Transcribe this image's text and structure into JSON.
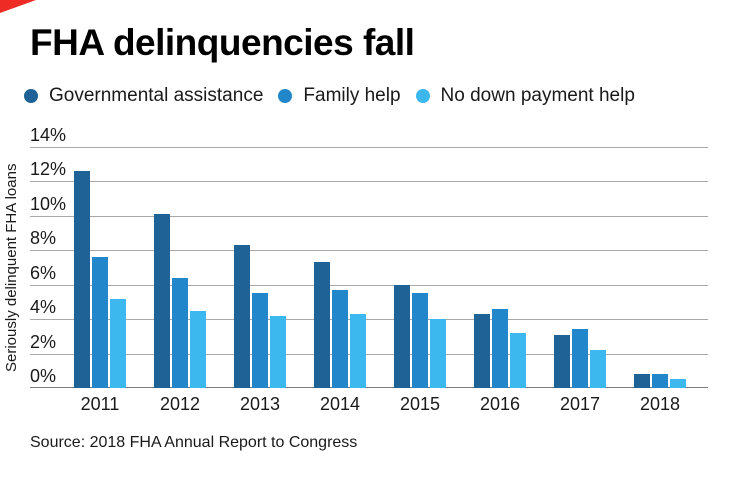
{
  "page": {
    "title": "FHA delinquencies fall",
    "source": "Source: 2018 FHA Annual Report to Congress"
  },
  "brand": {
    "corner_flag_color": "#ee2b24"
  },
  "colors": {
    "series_dark_blue": "#1f6396",
    "series_medium_blue": "#2187ca",
    "series_light_blue": "#3cb8ef",
    "gridline": "#a9a9a9",
    "baseline": "#7d7d7d",
    "text": "#1a1a1a"
  },
  "chart_data": {
    "type": "bar",
    "title": "FHA delinquencies fall",
    "categories": [
      "2011",
      "2012",
      "2013",
      "2014",
      "2015",
      "2016",
      "2017",
      "2018"
    ],
    "series": [
      {
        "name": "Governmental assistance",
        "color": "#1f6396",
        "values": [
          12.6,
          10.1,
          8.3,
          7.3,
          6.0,
          4.3,
          3.1,
          0.8
        ]
      },
      {
        "name": "Family help",
        "color": "#2187ca",
        "values": [
          7.6,
          6.4,
          5.5,
          5.7,
          5.5,
          4.6,
          3.4,
          0.8
        ]
      },
      {
        "name": "No down payment help",
        "color": "#3cb8ef",
        "values": [
          5.2,
          4.5,
          4.2,
          4.3,
          4.0,
          3.2,
          2.2,
          0.5
        ]
      }
    ],
    "xlabel": "",
    "ylabel": "Seriously delinquent FHA loans",
    "ylim": [
      0,
      14
    ],
    "yticks": [
      "14%",
      "12%",
      "10%",
      "8%",
      "6%",
      "4%",
      "2%",
      "0%"
    ],
    "ytick_values": [
      14,
      12,
      10,
      8,
      6,
      4,
      2,
      0
    ],
    "grid": true,
    "legend_position": "top",
    "source": "Source: 2018 FHA Annual Report to Congress"
  }
}
